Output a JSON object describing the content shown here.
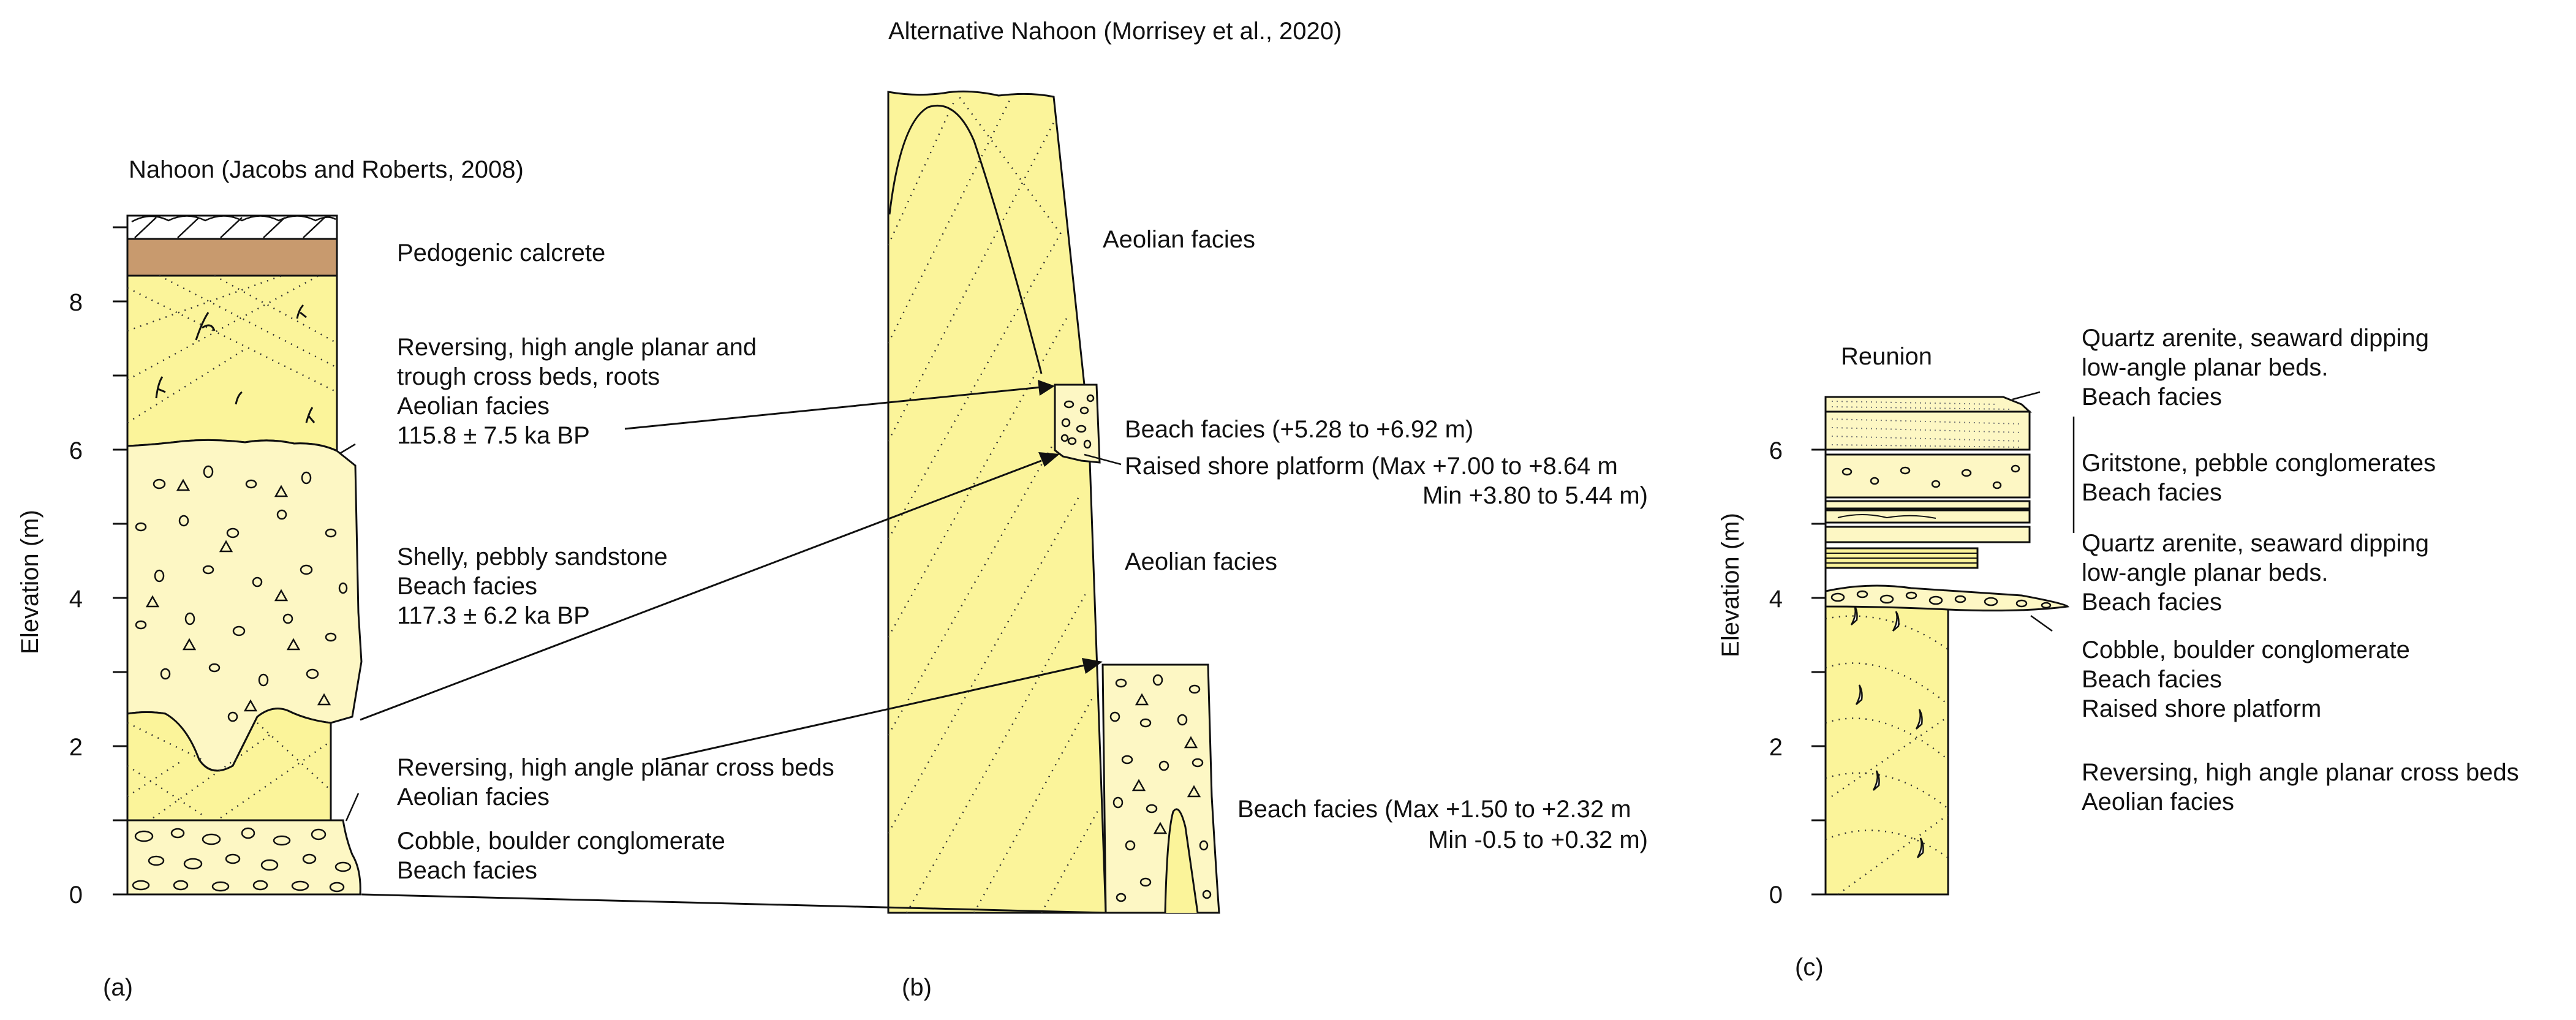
{
  "colors": {
    "fill_yellow": "#fbf49a",
    "fill_pale": "#fdf7c4",
    "calcrete": "#c89a6e",
    "ink": "#111111"
  },
  "panel_a": {
    "title": "Nahoon (Jacobs and Roberts, 2008)",
    "y_axis_label": "Elevation (m)",
    "ticks": [
      "0",
      "2",
      "4",
      "6",
      "8"
    ],
    "panel_label": "(a)",
    "labels": {
      "calcrete": "Pedogenic calcrete",
      "upper_1": "Reversing, high angle planar and",
      "upper_2": "trough cross beds, roots",
      "upper_3": "Aeolian facies",
      "upper_4": "115.8 ± 7.5 ka BP",
      "mid_1": "Shelly, pebbly sandstone",
      "mid_2": "Beach facies",
      "mid_3": "117.3 ± 6.2 ka BP",
      "lower_1": "Reversing, high angle planar cross beds",
      "lower_2": "Aeolian facies",
      "base_1": "Cobble, boulder conglomerate",
      "base_2": "Beach facies"
    }
  },
  "panel_b": {
    "title": "Alternative Nahoon (Morrisey et al., 2020)",
    "panel_label": "(b)",
    "labels": {
      "aeolian_top": "Aeolian facies",
      "beach_upper": "Beach facies (+5.28 to +6.92 m)",
      "platform_1": "Raised shore platform (Max +7.00 to +8.64 m",
      "platform_2": "Min +3.80 to 5.44 m)",
      "aeolian_mid": "Aeolian facies",
      "beach_lower_1": "Beach facies (Max +1.50 to +2.32 m",
      "beach_lower_2": "Min -0.5 to +0.32 m)"
    }
  },
  "panel_c": {
    "title": "Reunion",
    "y_axis_label": "Elevation (m)",
    "ticks": [
      "0",
      "2",
      "4",
      "6"
    ],
    "panel_label": "(c)",
    "labels": {
      "top_1": "Quartz arenite, seaward dipping",
      "top_2": "low-angle planar beds.",
      "top_3": "Beach facies",
      "grit_1": "Gritstone, pebble conglomerates",
      "grit_2": "Beach facies",
      "qa2_1": "Quartz arenite, seaward dipping",
      "qa2_2": "low-angle planar beds.",
      "qa2_3": "Beach facies",
      "cob_1": "Cobble, boulder conglomerate",
      "cob_2": "Beach facies",
      "cob_3": "Raised shore platform",
      "aeo_1": "Reversing, high angle planar cross beds",
      "aeo_2": "Aeolian facies"
    }
  }
}
